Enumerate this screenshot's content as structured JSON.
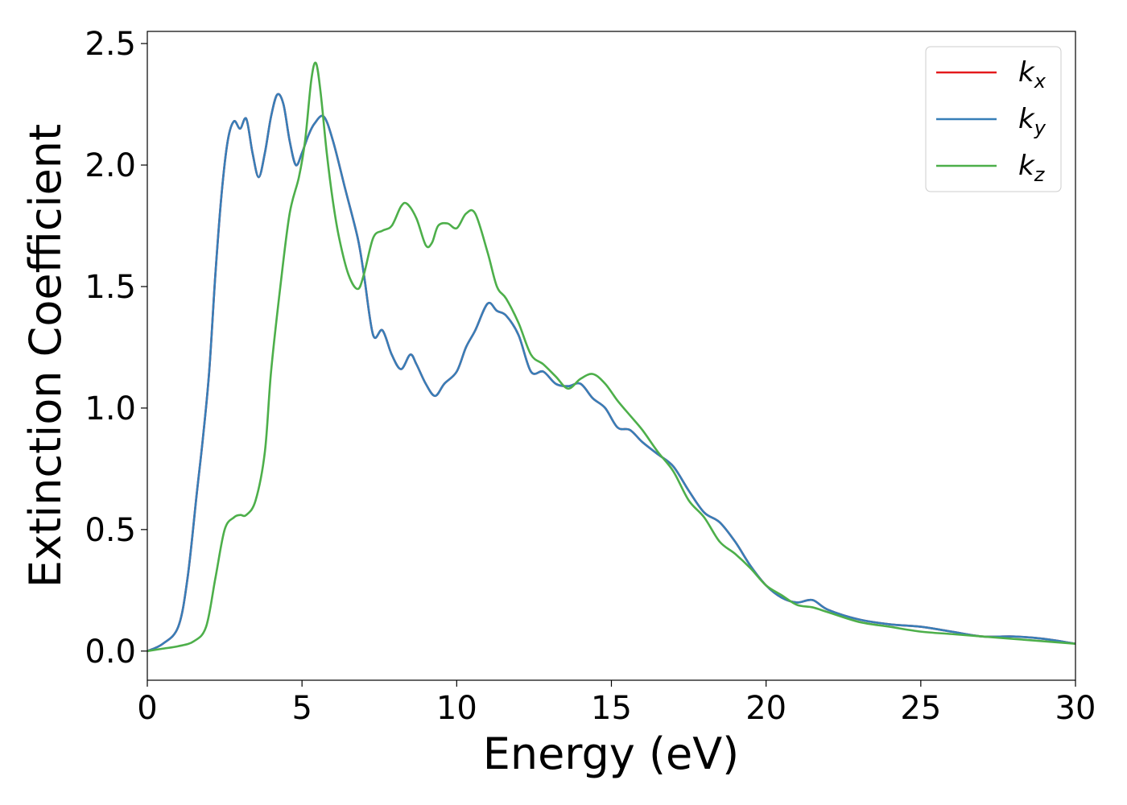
{
  "chart_data": {
    "type": "line",
    "xlabel": "Energy (eV)",
    "ylabel": "Extinction Coefficient",
    "xlim": [
      0,
      30
    ],
    "ylim": [
      -0.12,
      2.55
    ],
    "xticks": [
      0,
      5,
      10,
      15,
      20,
      25,
      30
    ],
    "xtick_labels": [
      "0",
      "5",
      "10",
      "15",
      "20",
      "25",
      "30"
    ],
    "yticks": [
      0.0,
      0.5,
      1.0,
      1.5,
      2.0,
      2.5
    ],
    "ytick_labels": [
      "0.0",
      "0.5",
      "1.0",
      "1.5",
      "2.0",
      "2.5"
    ],
    "grid": false,
    "legend_position": "top-right",
    "series": [
      {
        "name": "k_x",
        "label_main": "k",
        "label_sub": "x",
        "color": "#e41a1c",
        "x": [
          0,
          0.5,
          1.0,
          1.3,
          1.6,
          1.8,
          2.0,
          2.2,
          2.4,
          2.6,
          2.8,
          3.0,
          3.2,
          3.4,
          3.6,
          3.8,
          4.0,
          4.2,
          4.4,
          4.6,
          4.8,
          5.0,
          5.2,
          5.4,
          5.7,
          6.0,
          6.4,
          6.8,
          7.0,
          7.3,
          7.6,
          7.9,
          8.2,
          8.5,
          8.7,
          9.0,
          9.3,
          9.6,
          10.0,
          10.3,
          10.6,
          11.0,
          11.3,
          11.6,
          12.0,
          12.4,
          12.8,
          13.2,
          13.6,
          14.0,
          14.4,
          14.8,
          15.2,
          15.6,
          16.0,
          16.5,
          17.0,
          17.5,
          18.0,
          18.5,
          19.0,
          19.5,
          20.0,
          20.5,
          21.0,
          21.5,
          22.0,
          23.0,
          24.0,
          25.0,
          26.0,
          27.0,
          28.0,
          29.0,
          30.0
        ],
        "y": [
          0.0,
          0.03,
          0.1,
          0.3,
          0.65,
          0.88,
          1.15,
          1.55,
          1.88,
          2.1,
          2.18,
          2.15,
          2.19,
          2.05,
          1.95,
          2.05,
          2.2,
          2.29,
          2.25,
          2.1,
          2.0,
          2.05,
          2.12,
          2.17,
          2.2,
          2.1,
          1.9,
          1.7,
          1.55,
          1.3,
          1.32,
          1.22,
          1.16,
          1.22,
          1.18,
          1.1,
          1.05,
          1.1,
          1.15,
          1.25,
          1.32,
          1.43,
          1.4,
          1.38,
          1.3,
          1.15,
          1.15,
          1.1,
          1.09,
          1.1,
          1.04,
          1.0,
          0.92,
          0.91,
          0.86,
          0.81,
          0.76,
          0.66,
          0.57,
          0.53,
          0.45,
          0.35,
          0.27,
          0.22,
          0.2,
          0.21,
          0.17,
          0.13,
          0.11,
          0.1,
          0.08,
          0.06,
          0.06,
          0.05,
          0.03
        ]
      },
      {
        "name": "k_y",
        "label_main": "k",
        "label_sub": "y",
        "color": "#377eb8",
        "x": [
          0,
          0.5,
          1.0,
          1.3,
          1.6,
          1.8,
          2.0,
          2.2,
          2.4,
          2.6,
          2.8,
          3.0,
          3.2,
          3.4,
          3.6,
          3.8,
          4.0,
          4.2,
          4.4,
          4.6,
          4.8,
          5.0,
          5.2,
          5.4,
          5.7,
          6.0,
          6.4,
          6.8,
          7.0,
          7.3,
          7.6,
          7.9,
          8.2,
          8.5,
          8.7,
          9.0,
          9.3,
          9.6,
          10.0,
          10.3,
          10.6,
          11.0,
          11.3,
          11.6,
          12.0,
          12.4,
          12.8,
          13.2,
          13.6,
          14.0,
          14.4,
          14.8,
          15.2,
          15.6,
          16.0,
          16.5,
          17.0,
          17.5,
          18.0,
          18.5,
          19.0,
          19.5,
          20.0,
          20.5,
          21.0,
          21.5,
          22.0,
          23.0,
          24.0,
          25.0,
          26.0,
          27.0,
          28.0,
          29.0,
          30.0
        ],
        "y": [
          0.0,
          0.03,
          0.1,
          0.3,
          0.65,
          0.88,
          1.15,
          1.55,
          1.88,
          2.1,
          2.18,
          2.15,
          2.19,
          2.05,
          1.95,
          2.05,
          2.2,
          2.29,
          2.25,
          2.1,
          2.0,
          2.05,
          2.12,
          2.17,
          2.2,
          2.1,
          1.9,
          1.7,
          1.55,
          1.3,
          1.32,
          1.22,
          1.16,
          1.22,
          1.18,
          1.1,
          1.05,
          1.1,
          1.15,
          1.25,
          1.32,
          1.43,
          1.4,
          1.38,
          1.3,
          1.15,
          1.15,
          1.1,
          1.09,
          1.1,
          1.04,
          1.0,
          0.92,
          0.91,
          0.86,
          0.81,
          0.76,
          0.66,
          0.57,
          0.53,
          0.45,
          0.35,
          0.27,
          0.22,
          0.2,
          0.21,
          0.17,
          0.13,
          0.11,
          0.1,
          0.08,
          0.06,
          0.06,
          0.05,
          0.03
        ]
      },
      {
        "name": "k_z",
        "label_main": "k",
        "label_sub": "z",
        "color": "#4daf4a",
        "x": [
          0,
          0.5,
          1.0,
          1.5,
          1.9,
          2.2,
          2.5,
          2.8,
          3.0,
          3.2,
          3.5,
          3.8,
          4.0,
          4.3,
          4.6,
          4.9,
          5.1,
          5.3,
          5.45,
          5.6,
          5.8,
          6.0,
          6.2,
          6.5,
          6.8,
          7.0,
          7.3,
          7.6,
          7.9,
          8.2,
          8.4,
          8.7,
          9.0,
          9.2,
          9.4,
          9.7,
          10.0,
          10.3,
          10.6,
          11.0,
          11.3,
          11.6,
          12.0,
          12.4,
          12.8,
          13.2,
          13.6,
          14.0,
          14.4,
          14.8,
          15.2,
          15.6,
          16.0,
          16.5,
          17.0,
          17.5,
          18.0,
          18.5,
          19.0,
          19.5,
          20.0,
          20.5,
          21.0,
          21.5,
          22.0,
          23.0,
          24.0,
          25.0,
          26.0,
          27.0,
          28.0,
          29.0,
          30.0
        ],
        "y": [
          0.0,
          0.01,
          0.02,
          0.04,
          0.1,
          0.3,
          0.5,
          0.55,
          0.56,
          0.56,
          0.62,
          0.82,
          1.15,
          1.5,
          1.8,
          1.95,
          2.1,
          2.35,
          2.42,
          2.3,
          2.05,
          1.85,
          1.7,
          1.55,
          1.49,
          1.55,
          1.7,
          1.73,
          1.75,
          1.83,
          1.84,
          1.78,
          1.67,
          1.68,
          1.75,
          1.76,
          1.74,
          1.8,
          1.8,
          1.64,
          1.5,
          1.45,
          1.35,
          1.22,
          1.18,
          1.13,
          1.08,
          1.12,
          1.14,
          1.1,
          1.03,
          0.97,
          0.91,
          0.82,
          0.74,
          0.62,
          0.55,
          0.45,
          0.4,
          0.34,
          0.27,
          0.23,
          0.19,
          0.18,
          0.16,
          0.12,
          0.1,
          0.08,
          0.07,
          0.06,
          0.05,
          0.04,
          0.03
        ]
      }
    ]
  }
}
